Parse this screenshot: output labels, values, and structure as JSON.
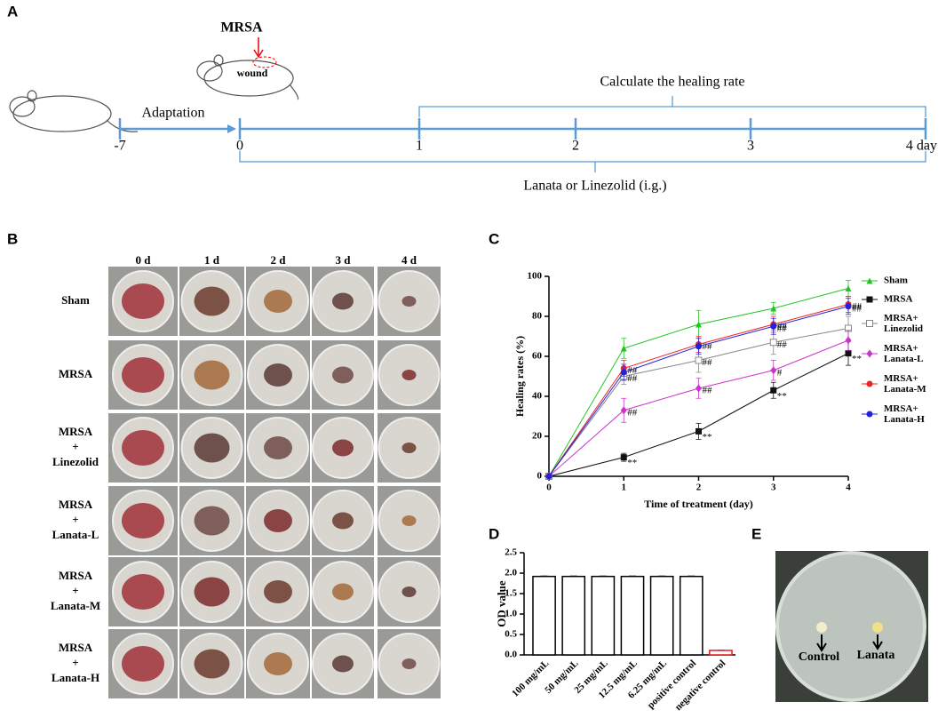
{
  "panels": {
    "a": "A",
    "b": "B",
    "c": "C",
    "d": "D",
    "e": "E"
  },
  "timeline": {
    "mrsa": "MRSA",
    "wound": "wound",
    "adaptation": "Adaptation",
    "calculate": "Calculate the healing rate",
    "treatment": "Lanata or Linezolid (i.g.)",
    "ticks": [
      "-7",
      "0",
      "1",
      "2",
      "3",
      "4 day"
    ]
  },
  "photos": {
    "columns": [
      "0 d",
      "1 d",
      "2 d",
      "3 d",
      "4 d"
    ],
    "rows": [
      [
        "Sham"
      ],
      [
        "MRSA"
      ],
      [
        "MRSA",
        "+",
        "Linezolid"
      ],
      [
        "MRSA",
        "+",
        "Lanata-L"
      ],
      [
        "MRSA",
        "+",
        "Lanata-M"
      ],
      [
        "MRSA",
        "+",
        "Lanata-H"
      ]
    ]
  },
  "dish": {
    "control": "Control",
    "lanata": "Lanata"
  },
  "chart_data": [
    {
      "type": "line",
      "xlabel": "Time of treatment (day)",
      "ylabel": "Healing rates (%)",
      "x": [
        0,
        1,
        2,
        3,
        4
      ],
      "xlim": [
        0,
        4
      ],
      "xticks": [
        0,
        1,
        2,
        3,
        4
      ],
      "ylim": [
        0,
        100
      ],
      "yticks": [
        0,
        20,
        40,
        60,
        80,
        100
      ],
      "series": [
        {
          "name": "Sham",
          "color": "#22c422",
          "marker": "triangle",
          "values": [
            0,
            64,
            76,
            84,
            94
          ],
          "errors": [
            0,
            5,
            7,
            3,
            4
          ],
          "annotations": [
            null,
            null,
            null,
            null,
            null
          ]
        },
        {
          "name": "MRSA",
          "color": "#111111",
          "marker": "square",
          "values": [
            0,
            9.5,
            22.5,
            43,
            61.5
          ],
          "errors": [
            0,
            2,
            4,
            4,
            6
          ],
          "annotations": [
            null,
            "**",
            "**",
            "**",
            "**"
          ]
        },
        {
          "name": "MRSA+\nLinezolid",
          "color": "#888888",
          "marker": "open-square",
          "values": [
            0,
            50,
            58,
            67,
            74
          ],
          "errors": [
            0,
            4,
            6,
            6,
            6
          ],
          "annotations": [
            null,
            "##",
            "##",
            "##",
            null
          ]
        },
        {
          "name": "MRSA+\nLanata-L",
          "color": "#cc33cc",
          "marker": "diamond",
          "values": [
            0,
            33,
            44,
            53,
            68
          ],
          "errors": [
            0,
            6,
            5,
            5,
            5
          ],
          "annotations": [
            null,
            "##",
            "##",
            "#",
            null
          ]
        },
        {
          "name": "MRSA+\nLanata-M",
          "color": "#ee2222",
          "marker": "circle",
          "values": [
            0,
            54,
            66,
            76,
            86
          ],
          "errors": [
            0,
            4,
            4,
            4,
            4
          ],
          "annotations": [
            null,
            "##",
            "##",
            "##",
            "##"
          ]
        },
        {
          "name": "MRSA+\nLanata-H",
          "color": "#2222dd",
          "marker": "circle",
          "values": [
            0,
            52,
            65,
            75,
            85
          ],
          "errors": [
            0,
            4,
            4,
            4,
            4
          ],
          "annotations": [
            null,
            null,
            null,
            "##",
            "##"
          ]
        }
      ]
    },
    {
      "type": "bar",
      "ylabel": "OD value",
      "categories": [
        "100 mg/mL",
        "50 mg/mL",
        "25 mg/mL",
        "12.5 mg/mL",
        "6.25 mg/mL",
        "positive control",
        "negative control"
      ],
      "values": [
        1.92,
        1.92,
        1.92,
        1.92,
        1.92,
        1.92,
        0.11
      ],
      "errors": [
        0.01,
        0.01,
        0.01,
        0.01,
        0.01,
        0.01,
        0.01
      ],
      "colors": [
        "#000000",
        "#000000",
        "#000000",
        "#000000",
        "#000000",
        "#000000",
        "#e31a1c"
      ],
      "ylim": [
        0,
        2.5
      ],
      "yticks": [
        {
          "value": 0,
          "label": "0.0"
        },
        0.5,
        {
          "value": 1,
          "label": "1.0"
        },
        1.5,
        {
          "value": 2,
          "label": "2.0"
        },
        2.5
      ]
    }
  ]
}
